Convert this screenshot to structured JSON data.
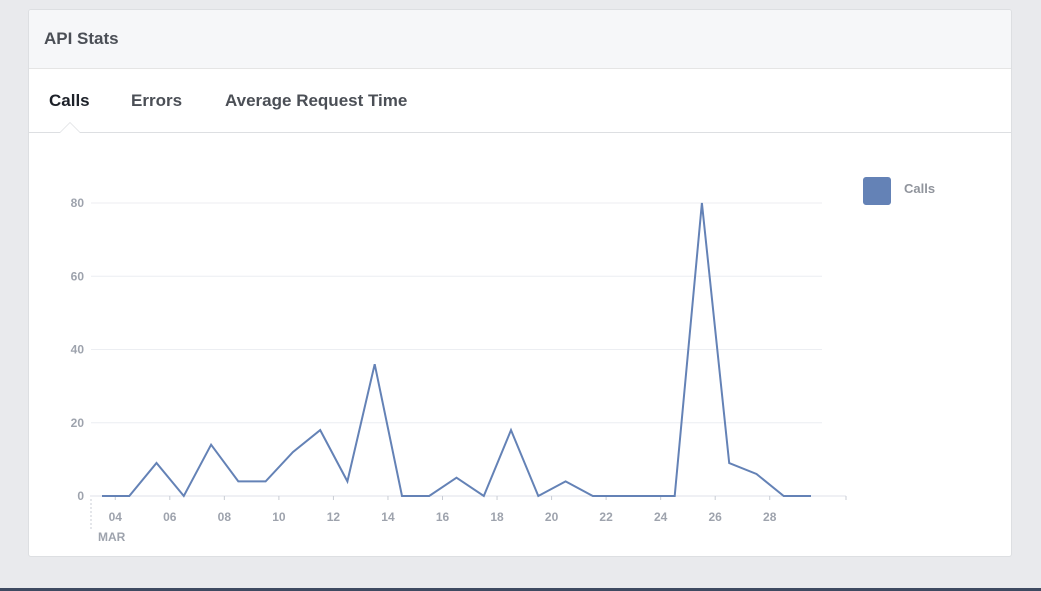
{
  "card": {
    "title": "API Stats"
  },
  "tabs": [
    {
      "label": "Calls",
      "active": true
    },
    {
      "label": "Errors",
      "active": false
    },
    {
      "label": "Average Request Time",
      "active": false
    }
  ],
  "legend": {
    "label": "Calls",
    "color": "#6482b6"
  },
  "chart_data": {
    "type": "line",
    "title": "",
    "xlabel": "",
    "ylabel": "",
    "month_label": "MAR",
    "x": [
      "03-03",
      "03-04",
      "03-05",
      "03-06",
      "03-07",
      "03-08",
      "03-09",
      "03-10",
      "03-11",
      "03-12",
      "03-13",
      "03-14",
      "03-15",
      "03-16",
      "03-17",
      "03-18",
      "03-19",
      "03-20",
      "03-21",
      "03-22",
      "03-23",
      "03-24",
      "03-25",
      "03-26",
      "03-27",
      "03-28",
      "03-29"
    ],
    "x_tick_labels": [
      "04",
      "06",
      "08",
      "10",
      "12",
      "14",
      "16",
      "18",
      "20",
      "22",
      "24",
      "26",
      "28"
    ],
    "y_ticks": [
      0,
      20,
      40,
      60,
      80
    ],
    "ylim": [
      0,
      80
    ],
    "grid": true,
    "legend_position": "top-right",
    "series": [
      {
        "name": "Calls",
        "color": "#6482b6",
        "values": [
          0,
          0,
          9,
          0,
          14,
          4,
          4,
          12,
          18,
          4,
          36,
          0,
          0,
          5,
          0,
          18,
          0,
          4,
          0,
          0,
          0,
          0,
          80,
          9,
          6,
          0,
          0
        ]
      }
    ]
  }
}
